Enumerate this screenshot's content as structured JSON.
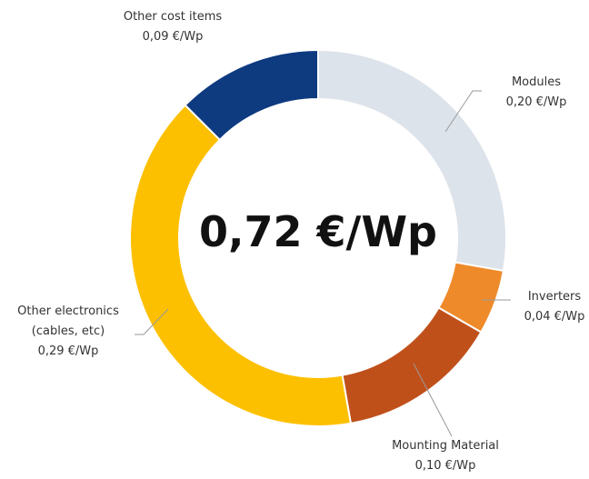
{
  "chart_data": {
    "type": "donut",
    "center_label": "0,72 €/Wp",
    "categories": [
      "Modules",
      "Inverters",
      "Mounting Material",
      "Other electronics (cables, etc)",
      "Other cost items"
    ],
    "values": [
      0.2,
      0.04,
      0.1,
      0.29,
      0.09
    ],
    "value_labels": [
      "0,20 €/Wp",
      "0,04 €/Wp",
      "0,10 €/Wp",
      "0,29 €/Wp",
      "0,09 €/Wp"
    ],
    "colors": [
      "#dde3ea",
      "#ee8a2a",
      "#c0501a",
      "#fdc000",
      "#0e3a80"
    ]
  }
}
